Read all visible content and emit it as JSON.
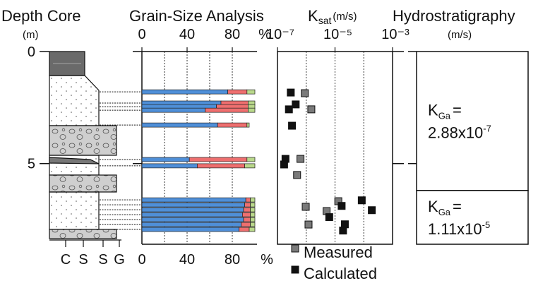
{
  "depth": {
    "title": "Depth Core",
    "unit": "(m)",
    "ylim": [
      0,
      8.6
    ],
    "yticks": [
      0,
      5
    ],
    "grain_classes": [
      "C",
      "S",
      "S",
      "G"
    ]
  },
  "chart_data": [
    {
      "type": "bar",
      "orientation": "horizontal",
      "stacked": true,
      "title": "Grain-Size Analysis",
      "x_unit": "%",
      "xlim": [
        0,
        100
      ],
      "xticks": [
        0,
        40,
        80
      ],
      "x_grid": [
        20,
        40,
        60,
        80
      ],
      "depths": [
        1.8,
        2.3,
        2.46,
        2.62,
        3.28,
        4.82,
        5.1,
        6.62,
        6.84,
        7.06,
        7.28,
        7.5,
        7.72,
        7.94
      ],
      "series": [
        {
          "color": "#4f8fd8",
          "values": [
            76,
            70,
            66,
            56,
            67,
            42,
            49,
            92,
            91,
            90,
            89,
            90,
            88,
            86
          ]
        },
        {
          "color": "#ee6f6f",
          "values": [
            17,
            24,
            28,
            38,
            26,
            51,
            42,
            4,
            5,
            6,
            7,
            6,
            8,
            9
          ]
        },
        {
          "color": "#b9d88b",
          "values": [
            7,
            6,
            6,
            6,
            2,
            7,
            9,
            4,
            4,
            4,
            4,
            4,
            4,
            5
          ]
        }
      ]
    },
    {
      "type": "scatter",
      "title": "K",
      "title_sub": "sat",
      "unit": "(m/s)",
      "log_x": true,
      "xlim": [
        1e-07,
        0.001
      ],
      "xticks": [
        {
          "value": 1e-07,
          "label": "10⁻⁷"
        },
        {
          "value": 1e-05,
          "label": "10⁻⁵"
        },
        {
          "value": 0.001,
          "label": "10⁻³"
        }
      ],
      "x_grid": [
        1e-06,
        1e-05,
        0.0001
      ],
      "series": [
        {
          "name": "Measured",
          "color": "#7a7a7a",
          "x": [
            8.9e-07,
            1.5e-06,
            6.3e-07,
            4.8e-07,
            9.6e-07,
            1.3e-05,
            5.1e-06,
            1.2e-06
          ],
          "y": [
            1.86,
            2.58,
            4.79,
            5.51,
            6.93,
            6.68,
            7.12,
            7.72
          ]
        },
        {
          "name": "Calculated",
          "color": "#111111",
          "x": [
            2.9e-07,
            4.3e-07,
            2.5e-07,
            3.2e-07,
            1.9e-07,
            1.7e-07,
            1.7e-05,
            8.5e-05,
            0.00019,
            6.3e-06,
            2.2e-05,
            1.9e-05
          ],
          "y": [
            1.83,
            2.36,
            2.58,
            3.31,
            4.79,
            5.04,
            6.89,
            6.64,
            7.08,
            7.39,
            7.71,
            7.99
          ]
        }
      ]
    }
  ],
  "hydrostratigraphy": {
    "title": "Hydrostratigraphy",
    "unit": "(m/s)",
    "units": [
      {
        "top": 0,
        "bottom": 6.2,
        "symbol": "K",
        "sub": "Ga",
        "eq": "=",
        "mantissa": "2.88x10",
        "exponent": "-7"
      },
      {
        "top": 6.2,
        "bottom": 8.6,
        "symbol": "K",
        "sub": "Ga",
        "eq": "=",
        "mantissa": "1.11x10",
        "exponent": "-5"
      }
    ]
  }
}
